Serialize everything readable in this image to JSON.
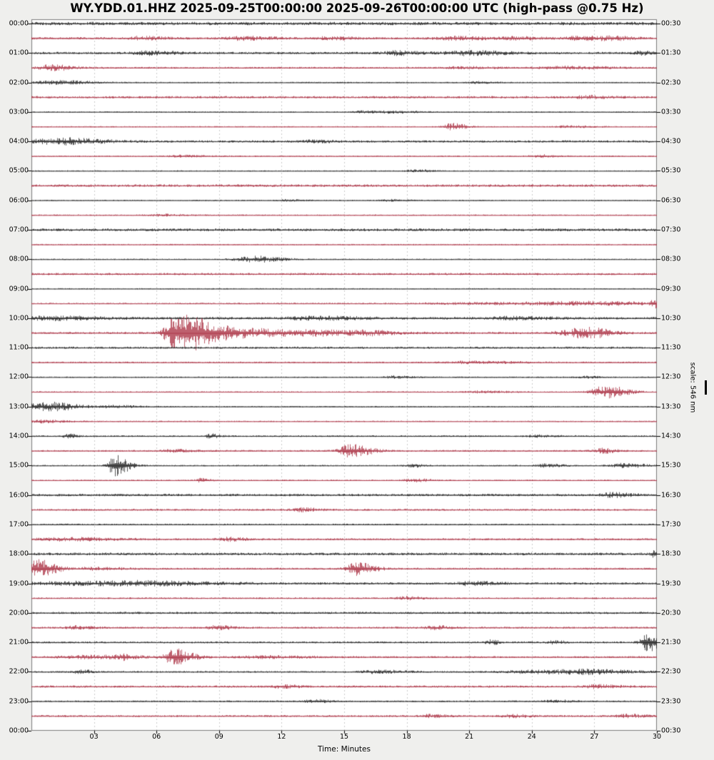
{
  "title": "WY.YDD.01.HHZ 2025-09-25T00:00:00 2025-09-26T00:00:00 UTC (high-pass @0.75 Hz)",
  "x_axis": {
    "label": "Time: Minutes",
    "tick_minutes": [
      3,
      6,
      9,
      12,
      15,
      18,
      21,
      24,
      27,
      30
    ],
    "tick_labels": [
      "03",
      "06",
      "09",
      "12",
      "15",
      "18",
      "21",
      "24",
      "27",
      "30"
    ],
    "grid_minutes": [
      3,
      6,
      9,
      12,
      15,
      18,
      21,
      24,
      27
    ],
    "range_minutes": [
      0,
      30
    ]
  },
  "left_labels": [
    "00:00",
    "01:00",
    "02:00",
    "03:00",
    "04:00",
    "05:00",
    "06:00",
    "07:00",
    "08:00",
    "09:00",
    "10:00",
    "11:00",
    "12:00",
    "13:00",
    "14:00",
    "15:00",
    "16:00",
    "17:00",
    "18:00",
    "19:00",
    "20:00",
    "21:00",
    "22:00",
    "23:00",
    "00:00"
  ],
  "right_labels": [
    "00:30",
    "01:30",
    "02:30",
    "03:30",
    "04:30",
    "05:30",
    "06:30",
    "07:30",
    "08:30",
    "09:30",
    "10:30",
    "11:30",
    "12:30",
    "13:30",
    "14:30",
    "15:30",
    "16:30",
    "17:30",
    "18:30",
    "19:30",
    "20:30",
    "21:30",
    "22:30",
    "23:30",
    "00:30"
  ],
  "scale_annotation": {
    "text": "scale: 546 nm"
  },
  "colors": {
    "trace_black": "#151515",
    "trace_red": "#a62639",
    "page_bg": "#efefed",
    "plot_bg": "#ffffff",
    "grid": "#cccccc",
    "border": "#7d7d7d"
  },
  "chart_data": {
    "type": "line",
    "subtype": "helicorder-dayplot",
    "station": "WY.YDD.01.HHZ",
    "start": "2025-09-25T00:00:00",
    "end": "2025-09-26T00:00:00",
    "filter": "high-pass @0.75 Hz",
    "minutes_per_line": 30,
    "scale_nm": 546,
    "legend_position": "none",
    "grid": "vertical-dashed",
    "rows": [
      {
        "start": "00:00",
        "color": "black",
        "noise": 1.3,
        "events": []
      },
      {
        "start": "00:30",
        "color": "red",
        "noise": 0.9,
        "events": [
          [
            5.2,
            1.2,
            0.4
          ],
          [
            10.1,
            1.3,
            0.5
          ],
          [
            14.2,
            1.0,
            0.4
          ],
          [
            20.3,
            1.2,
            0.6
          ],
          [
            23.2,
            1.0,
            0.4
          ],
          [
            26.4,
            1.6,
            0.5
          ],
          [
            27.9,
            1.0,
            0.3
          ]
        ]
      },
      {
        "start": "01:00",
        "color": "black",
        "noise": 0.9,
        "events": [
          [
            5.6,
            1.4,
            0.5
          ],
          [
            17.4,
            1.5,
            0.4
          ],
          [
            20.8,
            1.6,
            0.7
          ],
          [
            29.3,
            1.2,
            0.3
          ]
        ]
      },
      {
        "start": "01:30",
        "color": "red",
        "noise": 0.7,
        "events": [
          [
            0.9,
            2.2,
            0.4
          ],
          [
            20.6,
            0.8,
            0.5
          ],
          [
            25.5,
            1.0,
            0.8
          ]
        ]
      },
      {
        "start": "02:00",
        "color": "black",
        "noise": 0.5,
        "events": [
          [
            0.8,
            1.0,
            0.6
          ],
          [
            1.6,
            0.9,
            0.4
          ],
          [
            21.3,
            0.8,
            0.3
          ]
        ]
      },
      {
        "start": "02:30",
        "color": "red",
        "noise": 0.9,
        "events": [
          [
            26.6,
            1.0,
            0.4
          ]
        ]
      },
      {
        "start": "03:00",
        "color": "black",
        "noise": 0.45,
        "events": [
          [
            15.8,
            0.8,
            0.3
          ],
          [
            17.3,
            1.0,
            0.4
          ]
        ]
      },
      {
        "start": "03:30",
        "color": "red",
        "noise": 0.45,
        "events": [
          [
            20.15,
            2.6,
            0.25
          ],
          [
            25.7,
            0.9,
            0.4
          ]
        ]
      },
      {
        "start": "04:00",
        "color": "black",
        "noise": 0.9,
        "events": [
          [
            0.6,
            1.5,
            0.8
          ],
          [
            1.8,
            1.2,
            0.6
          ],
          [
            13.5,
            0.8,
            0.4
          ]
        ]
      },
      {
        "start": "04:30",
        "color": "red",
        "noise": 0.5,
        "events": [
          [
            7.2,
            0.7,
            0.5
          ],
          [
            24.3,
            1.1,
            0.3
          ]
        ]
      },
      {
        "start": "05:00",
        "color": "black",
        "noise": 0.45,
        "events": [
          [
            18.4,
            0.9,
            0.3
          ]
        ]
      },
      {
        "start": "05:30",
        "color": "red",
        "noise": 1.0,
        "events": []
      },
      {
        "start": "06:00",
        "color": "black",
        "noise": 0.45,
        "events": [
          [
            12.2,
            0.7,
            0.3
          ],
          [
            17.1,
            0.7,
            0.3
          ]
        ]
      },
      {
        "start": "06:30",
        "color": "red",
        "noise": 0.5,
        "events": [
          [
            6.1,
            0.8,
            0.4
          ]
        ]
      },
      {
        "start": "07:00",
        "color": "black",
        "noise": 1.1,
        "events": []
      },
      {
        "start": "07:30",
        "color": "red",
        "noise": 0.5,
        "events": []
      },
      {
        "start": "08:00",
        "color": "black",
        "noise": 0.5,
        "events": [
          [
            10.3,
            1.4,
            0.5
          ],
          [
            10.9,
            1.2,
            0.4
          ]
        ]
      },
      {
        "start": "08:30",
        "color": "red",
        "noise": 0.85,
        "events": []
      },
      {
        "start": "09:00",
        "color": "black",
        "noise": 0.45,
        "events": []
      },
      {
        "start": "09:30",
        "color": "red",
        "noise": 0.6,
        "events": [
          [
            22.0,
            0.8,
            2.0
          ],
          [
            26.5,
            1.0,
            1.5
          ],
          [
            29.82,
            3.0,
            0.08
          ]
        ]
      },
      {
        "start": "10:00",
        "color": "black",
        "noise": 1.0,
        "events": [
          [
            0.8,
            1.4,
            0.8
          ],
          [
            13.5,
            1.2,
            0.8
          ],
          [
            23.0,
            1.0,
            0.6
          ]
        ]
      },
      {
        "start": "10:30",
        "color": "red",
        "noise": 0.85,
        "events": [
          [
            6.75,
            12.0,
            0.28
          ],
          [
            7.65,
            10.0,
            0.3
          ],
          [
            8.6,
            3.0,
            0.5
          ],
          [
            9.6,
            1.8,
            1.0
          ],
          [
            11.5,
            1.2,
            1.5
          ],
          [
            13.7,
            1.0,
            0.5
          ],
          [
            16.0,
            1.6,
            0.4
          ],
          [
            25.6,
            1.8,
            0.4
          ],
          [
            26.4,
            2.4,
            0.35
          ],
          [
            27.1,
            1.6,
            0.35
          ]
        ]
      },
      {
        "start": "11:00",
        "color": "black",
        "noise": 0.85,
        "events": []
      },
      {
        "start": "11:30",
        "color": "red",
        "noise": 0.65,
        "events": [
          [
            21.0,
            0.8,
            0.8
          ]
        ]
      },
      {
        "start": "12:00",
        "color": "black",
        "noise": 0.5,
        "events": [
          [
            17.4,
            1.0,
            0.3
          ],
          [
            26.5,
            0.7,
            0.3
          ]
        ]
      },
      {
        "start": "12:30",
        "color": "red",
        "noise": 0.5,
        "events": [
          [
            21.5,
            0.8,
            0.5
          ],
          [
            27.15,
            3.6,
            0.3
          ],
          [
            27.95,
            3.0,
            0.28
          ]
        ]
      },
      {
        "start": "13:00",
        "color": "black",
        "noise": 0.5,
        "events": [
          [
            0.3,
            2.2,
            0.5
          ],
          [
            1.1,
            1.6,
            0.5
          ],
          [
            3.9,
            1.0,
            0.4
          ]
        ]
      },
      {
        "start": "13:30",
        "color": "red",
        "noise": 0.5,
        "events": [
          [
            0.5,
            1.1,
            0.4
          ]
        ]
      },
      {
        "start": "14:00",
        "color": "black",
        "noise": 0.65,
        "events": [
          [
            1.7,
            1.6,
            0.15
          ],
          [
            8.55,
            1.6,
            0.15
          ],
          [
            24.2,
            0.8,
            0.3
          ]
        ]
      },
      {
        "start": "14:30",
        "color": "red",
        "noise": 0.65,
        "events": [
          [
            6.8,
            1.0,
            0.4
          ],
          [
            15.25,
            5.0,
            0.35
          ],
          [
            27.3,
            1.8,
            0.25
          ]
        ]
      },
      {
        "start": "15:00",
        "color": "black",
        "noise": 0.55,
        "events": [
          [
            4.0,
            8.5,
            0.22
          ],
          [
            18.2,
            1.3,
            0.2
          ],
          [
            24.6,
            1.2,
            0.3
          ],
          [
            28.4,
            1.6,
            0.4
          ]
        ]
      },
      {
        "start": "15:30",
        "color": "red",
        "noise": 0.55,
        "events": [
          [
            8.1,
            1.6,
            0.15
          ],
          [
            18.2,
            1.2,
            0.3
          ]
        ]
      },
      {
        "start": "16:00",
        "color": "black",
        "noise": 0.95,
        "events": [
          [
            27.8,
            1.6,
            0.3
          ]
        ]
      },
      {
        "start": "16:30",
        "color": "red",
        "noise": 0.75,
        "events": [
          [
            12.9,
            1.3,
            0.3
          ]
        ]
      },
      {
        "start": "17:00",
        "color": "black",
        "noise": 0.65,
        "events": []
      },
      {
        "start": "17:30",
        "color": "red",
        "noise": 0.8,
        "events": [
          [
            1.5,
            1.2,
            0.8
          ],
          [
            9.4,
            1.3,
            0.3
          ]
        ]
      },
      {
        "start": "18:00",
        "color": "black",
        "noise": 1.05,
        "events": [
          [
            29.85,
            2.6,
            0.1
          ]
        ]
      },
      {
        "start": "18:30",
        "color": "red",
        "noise": 0.75,
        "events": [
          [
            0.25,
            7.0,
            0.3
          ],
          [
            2.8,
            1.0,
            0.5
          ],
          [
            15.55,
            5.0,
            0.3
          ]
        ]
      },
      {
        "start": "19:00",
        "color": "black",
        "noise": 0.9,
        "events": [
          [
            2.0,
            1.2,
            1.5
          ],
          [
            5.5,
            1.1,
            1.2
          ],
          [
            21.0,
            1.4,
            0.4
          ]
        ]
      },
      {
        "start": "19:30",
        "color": "red",
        "noise": 0.65,
        "events": [
          [
            18.0,
            1.2,
            0.3
          ]
        ]
      },
      {
        "start": "20:00",
        "color": "black",
        "noise": 0.85,
        "events": []
      },
      {
        "start": "20:30",
        "color": "red",
        "noise": 0.75,
        "events": [
          [
            2.1,
            1.2,
            0.3
          ],
          [
            8.8,
            1.4,
            0.3
          ],
          [
            19.3,
            1.4,
            0.3
          ]
        ]
      },
      {
        "start": "21:00",
        "color": "black",
        "noise": 0.75,
        "events": [
          [
            22.0,
            1.8,
            0.15
          ],
          [
            25.0,
            1.2,
            0.2
          ],
          [
            29.55,
            6.5,
            0.25
          ]
        ]
      },
      {
        "start": "21:30",
        "color": "red",
        "noise": 0.75,
        "events": [
          [
            2.8,
            1.2,
            1.0
          ],
          [
            4.3,
            1.6,
            0.15
          ],
          [
            6.85,
            6.0,
            0.3
          ],
          [
            11.0,
            0.9,
            0.8
          ]
        ]
      },
      {
        "start": "22:00",
        "color": "black",
        "noise": 0.65,
        "events": [
          [
            2.3,
            1.6,
            0.2
          ],
          [
            16.5,
            1.2,
            0.5
          ],
          [
            24.0,
            1.2,
            1.0
          ],
          [
            26.5,
            1.3,
            0.8
          ]
        ]
      },
      {
        "start": "22:30",
        "color": "red",
        "noise": 0.85,
        "events": [
          [
            12.0,
            1.2,
            0.3
          ],
          [
            27.0,
            1.2,
            0.4
          ]
        ]
      },
      {
        "start": "23:00",
        "color": "black",
        "noise": 0.65,
        "events": [
          [
            13.5,
            1.1,
            0.3
          ],
          [
            25.0,
            1.0,
            0.3
          ]
        ]
      },
      {
        "start": "23:30",
        "color": "red",
        "noise": 0.75,
        "events": [
          [
            19.0,
            1.1,
            0.3
          ],
          [
            23.0,
            1.1,
            0.3
          ],
          [
            28.5,
            1.4,
            0.3
          ]
        ]
      }
    ]
  }
}
